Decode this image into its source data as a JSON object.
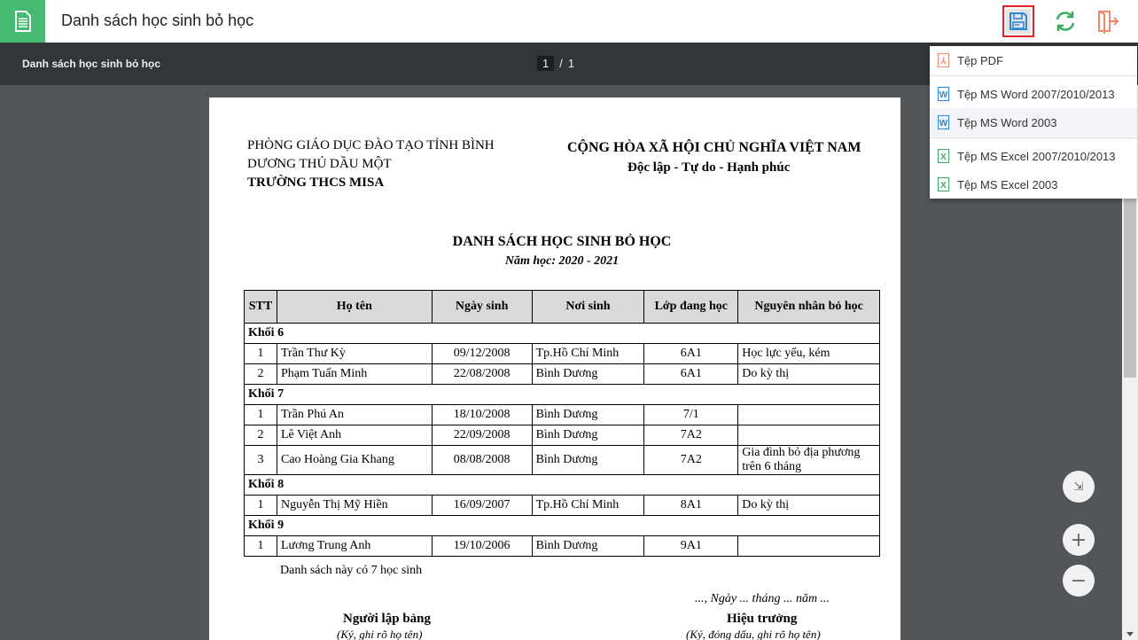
{
  "header": {
    "title": "Danh sách học sinh bỏ học"
  },
  "toolbar": {
    "doc_name": "Danh sách học sinh bỏ học",
    "page_current": "1",
    "page_sep": "/",
    "page_total": "1"
  },
  "export_menu": {
    "items": [
      {
        "label": "Tệp PDF",
        "icon": "pdf-file-icon",
        "color": "#f0896b"
      },
      {
        "label": "Tệp MS Word 2007/2010/2013",
        "icon": "word-file-icon",
        "color": "#2b87d8"
      },
      {
        "label": "Tệp MS Word 2003",
        "icon": "word-file-icon",
        "color": "#2b87d8"
      },
      {
        "label": "Tệp MS Excel 2007/2010/2013",
        "icon": "excel-file-icon",
        "color": "#3cab5f"
      },
      {
        "label": "Tệp MS Excel 2003",
        "icon": "excel-file-icon",
        "color": "#3cab5f"
      }
    ]
  },
  "document": {
    "org_line1": "PHÒNG GIÁO DỤC ĐÀO TẠO TỈNH BÌNH",
    "org_line2": "DƯƠNG THỦ DẦU MỘT",
    "school": "TRƯỜNG THCS MISA",
    "nation": "CỘNG HÒA XÃ HỘI CHỦ NGHĨA VIỆT NAM",
    "motto": "Độc lập - Tự do - Hạnh phúc",
    "title": "DANH SÁCH HỌC SINH BỎ HỌC",
    "year": "Năm học: 2020 - 2021",
    "columns": [
      "STT",
      "Họ tên",
      "Ngày sinh",
      "Nơi sinh",
      "Lớp đang học",
      "Nguyên nhân bỏ học"
    ],
    "groups": [
      {
        "name": "Khối 6",
        "rows": [
          [
            "1",
            "Trần Thư Kỳ",
            "09/12/2008",
            "Tp.Hồ Chí Minh",
            "6A1",
            "Học lực yếu, kém"
          ],
          [
            "2",
            "Phạm Tuấn Minh",
            "22/08/2008",
            "Bình Dương",
            "6A1",
            "Do kỳ thị"
          ]
        ]
      },
      {
        "name": "Khối 7",
        "rows": [
          [
            "1",
            "Trần Phú An",
            "18/10/2008",
            "Bình Dương",
            "7/1",
            ""
          ],
          [
            "2",
            "Lê Việt Anh",
            "22/09/2008",
            "Bình Dương",
            "7A2",
            ""
          ],
          [
            "3",
            "Cao Hoàng Gia Khang",
            "08/08/2008",
            "Bình Dương",
            "7A2",
            "Gia đình bỏ địa phương trên 6 tháng"
          ]
        ]
      },
      {
        "name": "Khối 8",
        "rows": [
          [
            "1",
            "Nguyễn Thị Mỹ Hiền",
            "16/09/2007",
            "Tp.Hồ Chí Minh",
            "8A1",
            "Do kỳ thị"
          ]
        ]
      },
      {
        "name": "Khối 9",
        "rows": [
          [
            "1",
            "Lương Trung Anh",
            "19/10/2006",
            "Bình Dương",
            "9A1",
            ""
          ]
        ]
      }
    ],
    "summary": "Danh sách này có 7 học sinh",
    "date_line": "..., Ngày ... tháng ... năm ...",
    "signer_left": "Người lập bảng",
    "signer_left_note": "(Ký, ghi rõ họ tên)",
    "signer_right": "Hiệu trưởng",
    "signer_right_note": "(Ký, đóng dấu, ghi rõ họ tên)"
  }
}
